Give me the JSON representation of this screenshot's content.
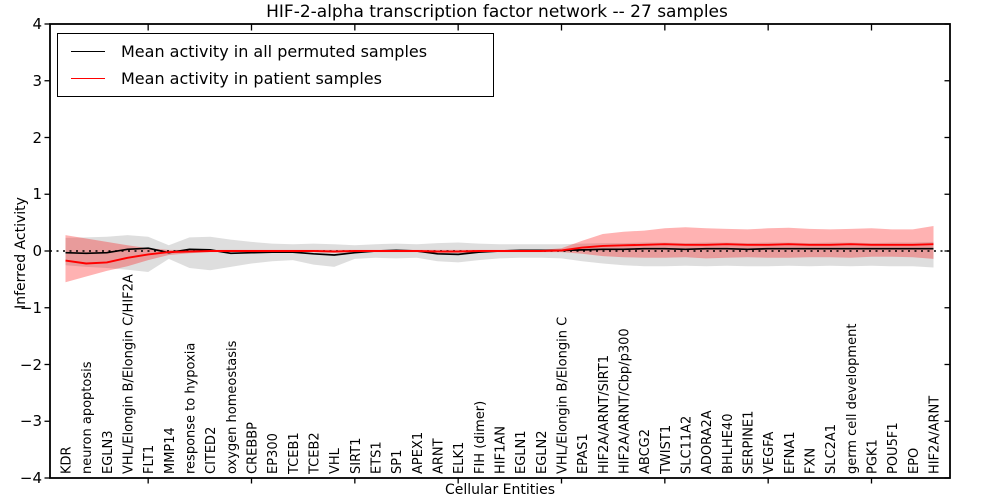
{
  "legend": {
    "entries": [
      {
        "label": "Mean activity in all permuted samples",
        "color": "#000000"
      },
      {
        "label": "Mean activity in patient samples",
        "color": "#ff0000"
      }
    ]
  },
  "chart_data": {
    "type": "line",
    "title": "HIF-2-alpha transcription factor network -- 27 samples",
    "xlabel": "Cellular Entities",
    "ylabel": "Inferred Activity",
    "ylim": [
      -4,
      4
    ],
    "yticks": [
      4,
      3,
      2,
      1,
      0,
      -1,
      -2,
      -3,
      -4
    ],
    "ytick_labels": [
      "4",
      "3",
      "2",
      "1",
      "0",
      "−1",
      "−2",
      "−3",
      "−4"
    ],
    "xtick_indices": [
      4,
      9,
      14,
      19,
      24,
      29,
      34,
      39
    ],
    "grid": false,
    "legend_position": "upper left",
    "reference_line": {
      "y": 0,
      "style": "dotted",
      "color": "#000000"
    },
    "categories": [
      "KDR",
      "neuron apoptosis",
      "EGLN3",
      "VHL/Elongin B/Elongin C/HIF2A",
      "FLT1",
      "MMP14",
      "response to hypoxia",
      "CITED2",
      "oxygen homeostasis",
      "CREBBP",
      "EP300",
      "TCEB1",
      "TCEB2",
      "VHL",
      "SIRT1",
      "ETS1",
      "SP1",
      "APEX1",
      "ARNT",
      "ELK1",
      "FIH (dimer)",
      "HIF1AN",
      "EGLN1",
      "EGLN2",
      "VHL/Elongin B/Elongin C",
      "EPAS1",
      "HIF2A/ARNT/SIRT1",
      "HIF2A/ARNT/Cbp/p300",
      "ABCG2",
      "TWIST1",
      "SLC11A2",
      "ADORA2A",
      "BHLHE40",
      "SERPINE1",
      "VEGFA",
      "EFNA1",
      "FXN",
      "SLC2A1",
      "germ cell development",
      "PGK1",
      "POU5F1",
      "EPO",
      "HIF2A/ARNT"
    ],
    "series": [
      {
        "name": "Mean activity in all permuted samples",
        "color": "#000000",
        "width": 1.7,
        "values": [
          -0.03,
          -0.04,
          -0.03,
          0.03,
          0.05,
          -0.03,
          0.03,
          0.02,
          -0.04,
          -0.03,
          -0.02,
          -0.02,
          -0.05,
          -0.07,
          -0.03,
          0.0,
          0.01,
          0.0,
          -0.05,
          -0.06,
          -0.02,
          0.0,
          0.01,
          0.01,
          0.01,
          0.02,
          0.03,
          0.03,
          0.04,
          0.04,
          0.03,
          0.04,
          0.04,
          0.03,
          0.04,
          0.04,
          0.04,
          0.04,
          0.04,
          0.04,
          0.04,
          0.04,
          0.04
        ]
      },
      {
        "name": "Mean activity in patient samples",
        "color": "#ff0000",
        "width": 1.9,
        "values": [
          -0.17,
          -0.22,
          -0.2,
          -0.12,
          -0.06,
          -0.02,
          -0.01,
          0.0,
          0.0,
          0.0,
          0.0,
          0.0,
          0.0,
          -0.01,
          0.0,
          0.0,
          0.0,
          0.0,
          -0.01,
          -0.01,
          0.0,
          0.0,
          0.0,
          0.0,
          0.01,
          0.06,
          0.09,
          0.1,
          0.11,
          0.12,
          0.11,
          0.11,
          0.12,
          0.11,
          0.11,
          0.12,
          0.11,
          0.11,
          0.12,
          0.11,
          0.11,
          0.11,
          0.12
        ]
      }
    ],
    "bands": [
      {
        "name": "permuted-std-band",
        "fill": "rgba(0,0,0,0.13)",
        "upper": [
          0.23,
          0.24,
          0.25,
          0.28,
          0.25,
          0.1,
          0.24,
          0.25,
          0.2,
          0.16,
          0.13,
          0.12,
          0.13,
          0.12,
          0.1,
          0.12,
          0.13,
          0.12,
          0.14,
          0.15,
          0.13,
          0.12,
          0.12,
          0.12,
          0.12,
          0.13,
          0.14,
          0.14,
          0.15,
          0.15,
          0.14,
          0.15,
          0.15,
          0.14,
          0.15,
          0.15,
          0.14,
          0.15,
          0.15,
          0.14,
          0.15,
          0.15,
          0.16
        ],
        "lower": [
          -0.25,
          -0.28,
          -0.3,
          -0.33,
          -0.37,
          -0.14,
          -0.3,
          -0.34,
          -0.28,
          -0.22,
          -0.18,
          -0.16,
          -0.24,
          -0.28,
          -0.14,
          -0.12,
          -0.13,
          -0.12,
          -0.18,
          -0.2,
          -0.16,
          -0.13,
          -0.12,
          -0.12,
          -0.13,
          -0.18,
          -0.22,
          -0.25,
          -0.27,
          -0.27,
          -0.26,
          -0.27,
          -0.26,
          -0.27,
          -0.27,
          -0.26,
          -0.27,
          -0.26,
          -0.27,
          -0.26,
          -0.27,
          -0.27,
          -0.29
        ]
      },
      {
        "name": "patient-std-band",
        "fill": "rgba(255,0,0,0.30)",
        "upper": [
          0.28,
          0.22,
          0.16,
          0.1,
          0.05,
          0.02,
          0.02,
          0.02,
          0.02,
          0.02,
          0.02,
          0.02,
          0.02,
          0.02,
          0.02,
          0.02,
          0.02,
          0.02,
          0.02,
          0.02,
          0.02,
          0.02,
          0.02,
          0.02,
          0.05,
          0.18,
          0.3,
          0.34,
          0.36,
          0.4,
          0.42,
          0.4,
          0.39,
          0.38,
          0.4,
          0.41,
          0.39,
          0.38,
          0.39,
          0.4,
          0.38,
          0.38,
          0.44
        ],
        "lower": [
          -0.55,
          -0.45,
          -0.35,
          -0.27,
          -0.16,
          -0.07,
          -0.04,
          -0.02,
          -0.02,
          -0.02,
          -0.02,
          -0.02,
          -0.02,
          -0.03,
          -0.02,
          -0.02,
          -0.02,
          -0.02,
          -0.03,
          -0.03,
          -0.02,
          -0.02,
          -0.02,
          -0.02,
          -0.02,
          -0.05,
          -0.09,
          -0.11,
          -0.12,
          -0.12,
          -0.11,
          -0.13,
          -0.12,
          -0.11,
          -0.12,
          -0.12,
          -0.11,
          -0.11,
          -0.12,
          -0.1,
          -0.1,
          -0.11,
          -0.14
        ]
      }
    ]
  }
}
